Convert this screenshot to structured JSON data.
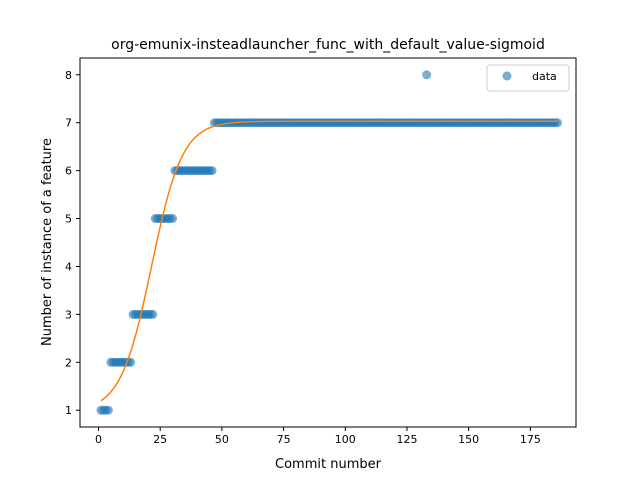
{
  "chart_data": {
    "type": "scatter",
    "title": "org-emunix-insteadlauncher_func_with_default_value-sigmoid",
    "xlabel": "Commit number",
    "ylabel": "Number of instance of a feature",
    "xlim": [
      -7.5,
      193.5
    ],
    "ylim": [
      0.65,
      8.35
    ],
    "xticks": [
      0,
      25,
      50,
      75,
      100,
      125,
      150,
      175
    ],
    "yticks": [
      1,
      2,
      3,
      4,
      5,
      6,
      7,
      8
    ],
    "grid": false,
    "legend": {
      "position": "top-right",
      "entries": [
        "data"
      ]
    },
    "colors": {
      "data": "#1f77b4",
      "fit": "#ff7f0e"
    },
    "series": [
      {
        "name": "data",
        "kind": "scatter",
        "segments": [
          {
            "x_start": 1,
            "x_end": 4,
            "y": 1
          },
          {
            "x_start": 5,
            "x_end": 13,
            "y": 2
          },
          {
            "x_start": 14,
            "x_end": 22,
            "y": 3
          },
          {
            "x_start": 23,
            "x_end": 30,
            "y": 5
          },
          {
            "x_start": 31,
            "x_end": 46,
            "y": 6
          },
          {
            "x_start": 47,
            "x_end": 186,
            "y": 7
          }
        ],
        "points": [
          {
            "x": 133,
            "y": 8
          }
        ]
      },
      {
        "kind": "line",
        "model": "sigmoid",
        "params": {
          "L": 6.05,
          "k": 0.16,
          "x0": 21.5,
          "b": 0.98
        },
        "x_range": [
          1,
          186
        ]
      }
    ]
  }
}
